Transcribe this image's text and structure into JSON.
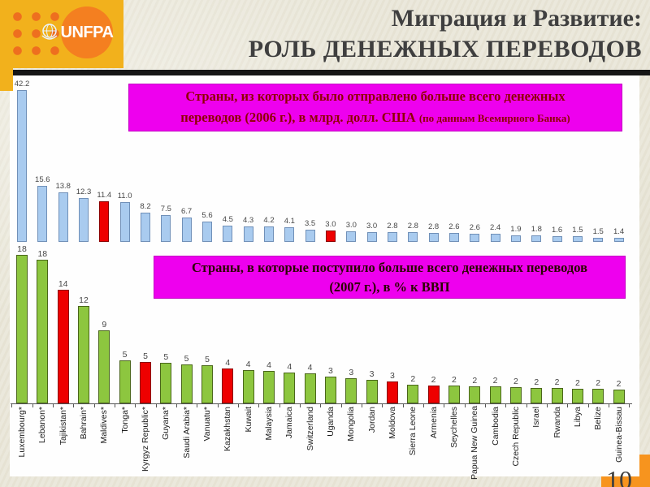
{
  "slide": {
    "logo_text": "UNFPA",
    "title_line1": "Миграция и Развитие:",
    "title_line2": "РОЛЬ ДЕНЕЖНЫХ ПЕРЕВОДОВ",
    "page_number": "10"
  },
  "colors": {
    "header_yellow": "#F2B11C",
    "logo_orange": "#F47F20",
    "dot_orange": "#EE6F1F",
    "accent_magenta": "#EE00EE",
    "bar_blue": "#A9CBEF",
    "bar_green": "#8DC63F",
    "bar_red": "#EE0000",
    "corner_orange": "#F7941E"
  },
  "chart_data": [
    {
      "type": "bar",
      "title": "Страны, из которых было отправлено больше всего денежных переводов (2006 г.), в млрд. долл. США (по данным Всемирного Банка)",
      "title_lines": [
        "Страны, из которых было отправлено больше всего денежных",
        "переводов (2006 г.), в млрд. долл. США"
      ],
      "title_note": "(по данным Всемирного Банка)",
      "values": [
        42.2,
        15.6,
        13.8,
        12.3,
        11.4,
        11.0,
        8.2,
        7.5,
        6.7,
        5.6,
        4.5,
        4.3,
        4.2,
        4.1,
        3.5,
        3.0,
        3.0,
        3.0,
        2.8,
        2.8,
        2.8,
        2.6,
        2.6,
        2.4,
        1.9,
        1.8,
        1.6,
        1.5,
        1.5,
        1.4
      ],
      "highlight_indices": [
        4,
        15
      ],
      "label_decimals": 1,
      "bar_color": "#A9CBEF",
      "bar_border": "#7090B8",
      "highlight_color": "#EE0000",
      "highlight_border": "#8B0000",
      "ylim": [
        0,
        45
      ],
      "grid": false,
      "legend": false,
      "value_labels": true
    },
    {
      "type": "bar",
      "title": "Страны, в которые поступило больше всего денежных переводов (2007 г.), в % к ВВП",
      "title_lines": [
        "Страны, в которые поступило больше всего денежных переводов",
        "(2007 г.), в % к ВВП"
      ],
      "categories": [
        "Luxembourg*",
        "Lebanon*",
        "Tajikistan*",
        "Bahrain*",
        "Maldives*",
        "Tonga*",
        "Kyrgyz Republic*",
        "Guyana*",
        "Saudi Arabia*",
        "Vanuatu*",
        "Kazakhstan",
        "Kuwait",
        "Malaysia",
        "Jamaica",
        "Switzerland",
        "Uganda",
        "Mongolia",
        "Jordan",
        "Moldova",
        "Sierra Leone",
        "Armenia",
        "Seychelles",
        "Papua New Guinea",
        "Cambodia",
        "Czech Republic",
        "Israel",
        "Rwanda",
        "Libya",
        "Belize",
        "Guinea-Bissau"
      ],
      "values": [
        18,
        18,
        14,
        12,
        9,
        5,
        5,
        5,
        5,
        5,
        4,
        4,
        4,
        4,
        4,
        3,
        3,
        3,
        3,
        2,
        2,
        2,
        2,
        2,
        2,
        2,
        2,
        2,
        2,
        2
      ],
      "highlight_indices": [
        2,
        6,
        10,
        18,
        20
      ],
      "label_decimals": 0,
      "bar_color": "#8DC63F",
      "bar_border": "#4A661A",
      "highlight_color": "#EE0000",
      "highlight_border": "#8B0000",
      "ylim": [
        0,
        20
      ],
      "grid": false,
      "legend": false,
      "value_labels": true,
      "category_label_rotation": -90
    }
  ]
}
